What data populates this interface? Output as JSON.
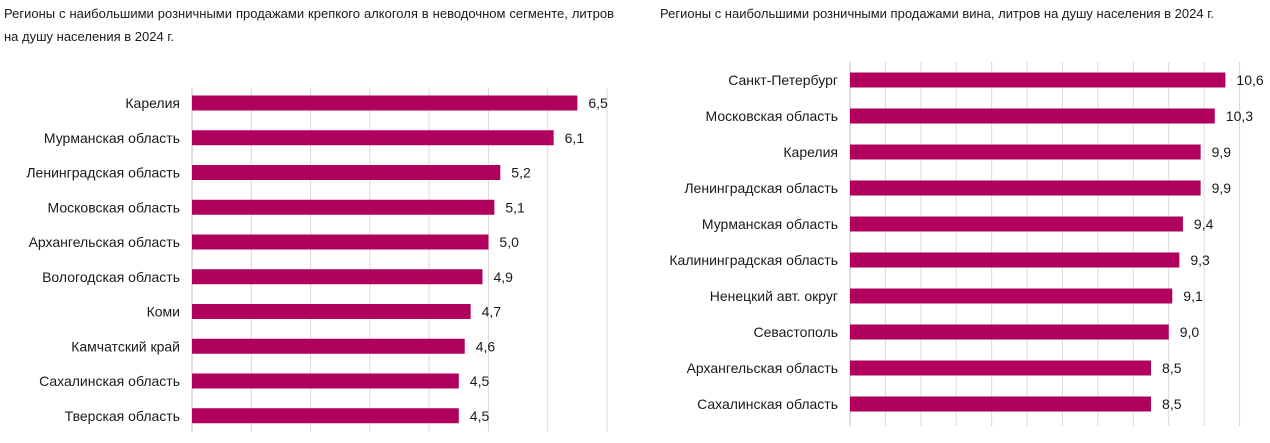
{
  "chart_data": [
    {
      "type": "bar",
      "orientation": "horizontal",
      "title": "Регионы с наибольшими розничными продажами крепкого алкоголя в неводочном сегменте, литров на душу населения в 2024 г.",
      "categories": [
        "Карелия",
        "Мурманская область",
        "Ленинградская область",
        "Московская область",
        "Архангельская область",
        "Вологодская область",
        "Коми",
        "Камчатский край",
        "Сахалинская область",
        "Тверская область"
      ],
      "values": [
        6.5,
        6.1,
        5.2,
        5.1,
        5.0,
        4.9,
        4.7,
        4.6,
        4.5,
        4.5
      ],
      "value_labels": [
        "6,5",
        "6,1",
        "5,2",
        "5,1",
        "5,0",
        "4,9",
        "4,7",
        "4,6",
        "4,5",
        "4,5"
      ],
      "xlim": [
        0,
        7
      ],
      "bar_color": "#b0005e",
      "grid": true
    },
    {
      "type": "bar",
      "orientation": "horizontal",
      "title": "Регионы с наибольшими розничными продажами вина, литров на душу населения в 2024 г.",
      "categories": [
        "Санкт-Петербург",
        "Московская область",
        "Карелия",
        "Ленинградская область",
        "Мурманская область",
        "Калининградская область",
        "Ненецкий авт. округ",
        "Севастополь",
        "Архангельская область",
        "Сахалинская область"
      ],
      "values": [
        10.6,
        10.3,
        9.9,
        9.9,
        9.4,
        9.3,
        9.1,
        9.0,
        8.5,
        8.5
      ],
      "value_labels": [
        "10,6",
        "10,3",
        "9,9",
        "9,9",
        "9,4",
        "9,3",
        "9,1",
        "9,0",
        "8,5",
        "8,5"
      ],
      "xlim": [
        0,
        12
      ],
      "bar_color": "#b0005e",
      "grid": true
    }
  ]
}
